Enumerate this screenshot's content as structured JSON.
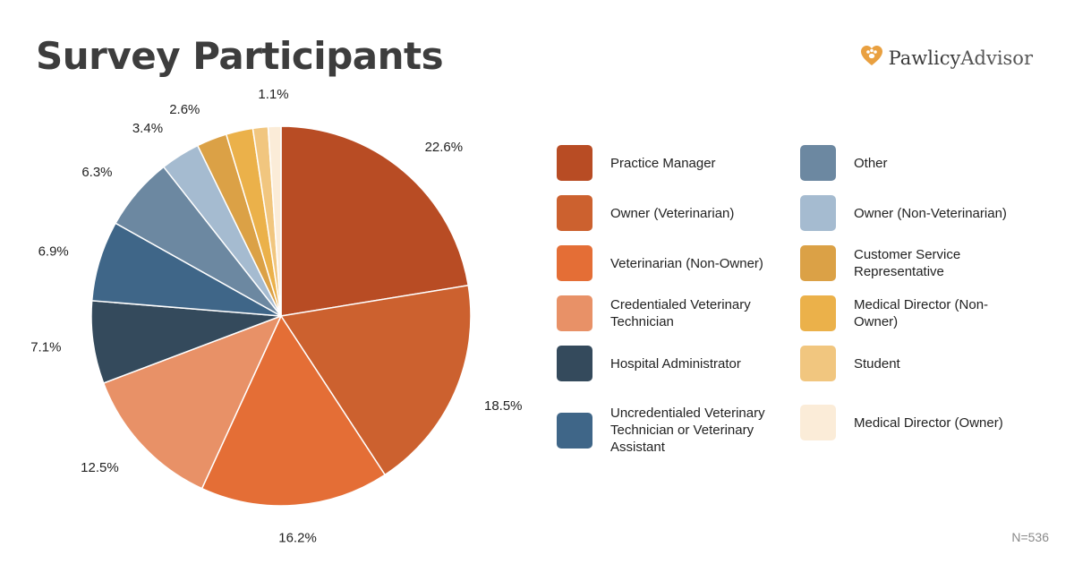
{
  "header": {
    "title": "Survey Participants"
  },
  "brand": {
    "name_bold": "Pawlicy",
    "name_light": "Advisor",
    "logo_icon": "heart-paw-icon"
  },
  "footnote": "N=536",
  "chart_data": {
    "type": "pie",
    "title": "Survey Participants",
    "slices": [
      {
        "label": "Practice Manager",
        "value": 22.6,
        "display": "22.6%",
        "color": "#b84c24"
      },
      {
        "label": "Owner (Veterinarian)",
        "value": 18.5,
        "display": "18.5%",
        "color": "#cc612f"
      },
      {
        "label": "Veterinarian (Non-Owner)",
        "value": 16.2,
        "display": "16.2%",
        "color": "#e46e36"
      },
      {
        "label": "Credentialed Veterinary Technician",
        "value": 12.5,
        "display": "12.5%",
        "color": "#e89167"
      },
      {
        "label": "Hospital Administrator",
        "value": 7.1,
        "display": "7.1%",
        "color": "#344a5c"
      },
      {
        "label": "Uncredentialed Veterinary Technician or Veterinary Assistant",
        "value": 6.9,
        "display": "6.9%",
        "color": "#3f6688"
      },
      {
        "label": "Other",
        "value": 6.3,
        "display": "6.3%",
        "color": "#6c88a1"
      },
      {
        "label": "Owner (Non-Veterinarian)",
        "value": 3.4,
        "display": "3.4%",
        "color": "#a5bbd0"
      },
      {
        "label": "Customer Service Representative",
        "value": 2.6,
        "display": "2.6%",
        "color": "#dba146"
      },
      {
        "label": "Medical Director (Non-Owner)",
        "value": 2.3,
        "display": "",
        "color": "#ebb14a"
      },
      {
        "label": "Student",
        "value": 1.3,
        "display": "",
        "color": "#f1c67f"
      },
      {
        "label": "Medical Director (Owner)",
        "value": 1.1,
        "display": "1.1%",
        "color": "#fbecd8"
      }
    ],
    "legend_placement": "right"
  }
}
